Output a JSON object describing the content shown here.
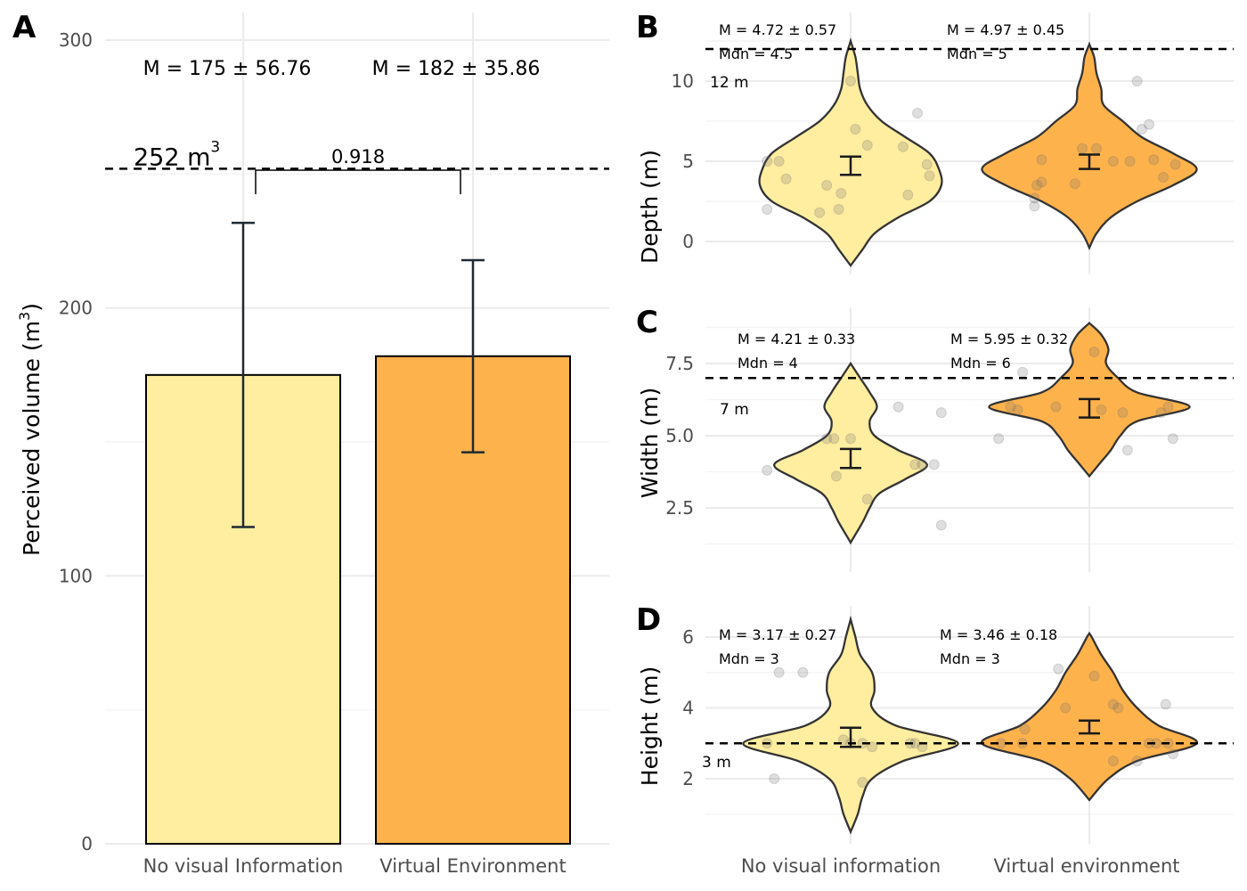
{
  "chart_data": [
    {
      "id": "A",
      "type": "bar",
      "panel_label": "A",
      "categories": [
        "No visual Information",
        "Virtual Environment"
      ],
      "values": [
        175,
        182
      ],
      "error": [
        56.76,
        35.86
      ],
      "colors": [
        "#ffeda0",
        "#feb24c"
      ],
      "ylabel": "Perceived volume (m",
      "ylabel_sup": "3",
      "ylabel_end": ")",
      "ylim": [
        0,
        300
      ],
      "yticks": [
        0,
        100,
        200,
        300
      ],
      "grid": true,
      "reference_line": {
        "value": 252,
        "label": "252 m",
        "label_sup": "3"
      },
      "stat_labels": [
        "M = 175 ± 56.76",
        "M = 182 ± 35.86"
      ],
      "comparison": {
        "p_label": "0.918"
      }
    },
    {
      "id": "B",
      "type": "violin",
      "panel_label": "B",
      "categories": [
        "No visual information",
        "Virtual environment"
      ],
      "ylabel": "Depth (m)",
      "ylim": [
        -1.7,
        12.9
      ],
      "yticks": [
        0,
        5,
        10
      ],
      "grid": true,
      "reference_line": {
        "value": 12,
        "label": "12 m"
      },
      "groups": [
        {
          "mean": 4.72,
          "se": 0.57,
          "mean_label": "M = 4.72 ± 0.57",
          "median_label": "Mdn = 4.5",
          "color": "#ffeda0",
          "points": [
            [
              -0.35,
              5.0
            ],
            [
              -0.3,
              5.0
            ],
            [
              -0.27,
              3.9
            ],
            [
              -0.35,
              2.0
            ],
            [
              -0.13,
              1.8
            ],
            [
              -0.05,
              2.0
            ],
            [
              -0.1,
              3.5
            ],
            [
              -0.04,
              3.0
            ],
            [
              0.0,
              10.0
            ],
            [
              0.02,
              7.0
            ],
            [
              0.07,
              6.0
            ],
            [
              0.22,
              5.9
            ],
            [
              0.24,
              2.9
            ],
            [
              0.28,
              8.0
            ],
            [
              0.32,
              4.8
            ],
            [
              0.33,
              4.1
            ]
          ],
          "violin": [
            [
              -1.5,
              0.0
            ],
            [
              -0.5,
              0.05
            ],
            [
              0.5,
              0.1
            ],
            [
              1.5,
              0.2
            ],
            [
              2.5,
              0.33
            ],
            [
              3.5,
              0.38
            ],
            [
              4.5,
              0.37
            ],
            [
              5.5,
              0.33
            ],
            [
              6.5,
              0.23
            ],
            [
              7.5,
              0.13
            ],
            [
              8.5,
              0.07
            ],
            [
              9.5,
              0.04
            ],
            [
              10.5,
              0.03
            ],
            [
              11.5,
              0.02
            ],
            [
              12.5,
              0.0
            ]
          ]
        },
        {
          "mean": 4.97,
          "se": 0.45,
          "mean_label": "M = 4.97 ± 0.45",
          "median_label": "Mdn = 5",
          "color": "#feb24c",
          "points": [
            [
              -0.23,
              2.7
            ],
            [
              -0.23,
              2.2
            ],
            [
              -0.22,
              3.5
            ],
            [
              -0.2,
              3.7
            ],
            [
              -0.2,
              5.1
            ],
            [
              -0.06,
              3.6
            ],
            [
              -0.03,
              5.8
            ],
            [
              0.03,
              5.8
            ],
            [
              0.1,
              5.0
            ],
            [
              0.17,
              5.0
            ],
            [
              0.2,
              10.0
            ],
            [
              0.22,
              7.0
            ],
            [
              0.25,
              7.3
            ],
            [
              0.27,
              5.1
            ],
            [
              0.31,
              4.0
            ],
            [
              0.36,
              4.8
            ]
          ],
          "violin": [
            [
              -0.4,
              0.0
            ],
            [
              0.5,
              0.03
            ],
            [
              1.5,
              0.09
            ],
            [
              2.5,
              0.2
            ],
            [
              3.5,
              0.35
            ],
            [
              4.5,
              0.45
            ],
            [
              5.5,
              0.35
            ],
            [
              6.5,
              0.22
            ],
            [
              7.5,
              0.14
            ],
            [
              8.5,
              0.06
            ],
            [
              9.5,
              0.05
            ],
            [
              10.5,
              0.03
            ],
            [
              11.5,
              0.02
            ],
            [
              12.3,
              0.0
            ]
          ]
        }
      ]
    },
    {
      "id": "C",
      "type": "violin",
      "panel_label": "C",
      "categories": [
        "No visual information",
        "Virtual environment"
      ],
      "ylabel": "Width (m)",
      "ylim": [
        1.0,
        9.0
      ],
      "yticks": [
        2.5,
        5.0,
        7.5
      ],
      "ytick_labels": [
        "2.5",
        "5.0",
        "7.5"
      ],
      "grid": true,
      "reference_line": {
        "value": 7,
        "label": "7 m"
      },
      "groups": [
        {
          "mean": 4.21,
          "se": 0.33,
          "mean_label": "M = 4.21 ± 0.33",
          "median_label": "Mdn = 4",
          "color": "#ffeda0",
          "points": [
            [
              -0.35,
              3.8
            ],
            [
              -0.1,
              4.9
            ],
            [
              -0.07,
              4.9
            ],
            [
              -0.06,
              3.6
            ],
            [
              0.0,
              4.9
            ],
            [
              0.07,
              2.8
            ],
            [
              0.2,
              6.0
            ],
            [
              0.27,
              4.0
            ],
            [
              0.3,
              4.0
            ],
            [
              0.35,
              4.0
            ],
            [
              0.38,
              5.8
            ],
            [
              0.38,
              1.9
            ]
          ],
          "violin": [
            [
              1.3,
              0.0
            ],
            [
              2.0,
              0.05
            ],
            [
              2.5,
              0.08
            ],
            [
              3.0,
              0.12
            ],
            [
              3.5,
              0.23
            ],
            [
              4.0,
              0.32
            ],
            [
              4.5,
              0.2
            ],
            [
              5.0,
              0.1
            ],
            [
              5.5,
              0.08
            ],
            [
              6.0,
              0.11
            ],
            [
              6.5,
              0.08
            ],
            [
              7.0,
              0.04
            ],
            [
              7.5,
              0.0
            ]
          ]
        },
        {
          "mean": 5.95,
          "se": 0.32,
          "mean_label": "M = 5.95 ± 0.32",
          "median_label": "Mdn = 6",
          "color": "#feb24c",
          "points": [
            [
              -0.38,
              4.9
            ],
            [
              -0.33,
              6.0
            ],
            [
              -0.3,
              5.9
            ],
            [
              -0.14,
              6.0
            ],
            [
              0.05,
              5.9
            ],
            [
              0.16,
              4.5
            ],
            [
              0.14,
              5.8
            ],
            [
              0.3,
              5.8
            ],
            [
              0.33,
              6.0
            ],
            [
              0.35,
              4.9
            ],
            [
              -0.28,
              7.2
            ],
            [
              0.02,
              7.9
            ]
          ],
          "violin": [
            [
              3.6,
              0.0
            ],
            [
              4.0,
              0.04
            ],
            [
              4.5,
              0.09
            ],
            [
              5.0,
              0.13
            ],
            [
              5.5,
              0.2
            ],
            [
              6.0,
              0.42
            ],
            [
              6.5,
              0.2
            ],
            [
              7.0,
              0.12
            ],
            [
              7.5,
              0.07
            ],
            [
              8.0,
              0.08
            ],
            [
              8.5,
              0.05
            ],
            [
              8.9,
              0.0
            ]
          ]
        }
      ]
    },
    {
      "id": "D",
      "type": "violin",
      "panel_label": "D",
      "categories": [
        "No visual information",
        "Virtual environment"
      ],
      "ylabel": "Height (m)",
      "ylim": [
        0.6,
        6.8
      ],
      "yticks": [
        2,
        4,
        6
      ],
      "grid": true,
      "reference_line": {
        "value": 3,
        "label": "3 m"
      },
      "groups": [
        {
          "mean": 3.17,
          "se": 0.27,
          "mean_label": "M = 3.17 ± 0.27",
          "median_label": "Mdn = 3",
          "color": "#ffeda0",
          "points": [
            [
              -0.35,
              3.0
            ],
            [
              -0.32,
              2.0
            ],
            [
              -0.3,
              5.0
            ],
            [
              -0.2,
              5.0
            ],
            [
              -0.03,
              3.1
            ],
            [
              0.0,
              3.0
            ],
            [
              0.05,
              3.0
            ],
            [
              0.05,
              1.9
            ],
            [
              0.09,
              2.9
            ],
            [
              0.25,
              3.0
            ],
            [
              0.27,
              3.0
            ],
            [
              0.3,
              2.9
            ]
          ],
          "violin": [
            [
              0.5,
              0.0
            ],
            [
              1.0,
              0.03
            ],
            [
              1.5,
              0.05
            ],
            [
              2.0,
              0.09
            ],
            [
              2.5,
              0.22
            ],
            [
              3.0,
              0.45
            ],
            [
              3.5,
              0.19
            ],
            [
              4.0,
              0.09
            ],
            [
              4.5,
              0.1
            ],
            [
              5.0,
              0.09
            ],
            [
              5.5,
              0.04
            ],
            [
              6.0,
              0.02
            ],
            [
              6.5,
              0.0
            ]
          ]
        },
        {
          "mean": 3.46,
          "se": 0.18,
          "mean_label": "M = 3.46 ± 0.18",
          "median_label": "Mdn = 3",
          "color": "#feb24c",
          "points": [
            [
              -0.37,
              3.0
            ],
            [
              -0.28,
              3.0
            ],
            [
              -0.27,
              3.4
            ],
            [
              -0.13,
              5.1
            ],
            [
              -0.1,
              4.0
            ],
            [
              0.02,
              4.9
            ],
            [
              0.1,
              4.1
            ],
            [
              0.12,
              4.0
            ],
            [
              0.1,
              2.5
            ],
            [
              0.2,
              2.5
            ],
            [
              0.25,
              3.0
            ],
            [
              0.28,
              3.0
            ],
            [
              0.32,
              4.1
            ],
            [
              0.33,
              3.0
            ],
            [
              0.35,
              2.7
            ]
          ],
          "violin": [
            [
              1.4,
              0.0
            ],
            [
              2.0,
              0.08
            ],
            [
              2.5,
              0.2
            ],
            [
              3.0,
              0.45
            ],
            [
              3.5,
              0.29
            ],
            [
              4.0,
              0.2
            ],
            [
              4.5,
              0.14
            ],
            [
              5.0,
              0.1
            ],
            [
              5.5,
              0.05
            ],
            [
              6.0,
              0.01
            ],
            [
              6.1,
              0.0
            ]
          ]
        }
      ]
    }
  ]
}
